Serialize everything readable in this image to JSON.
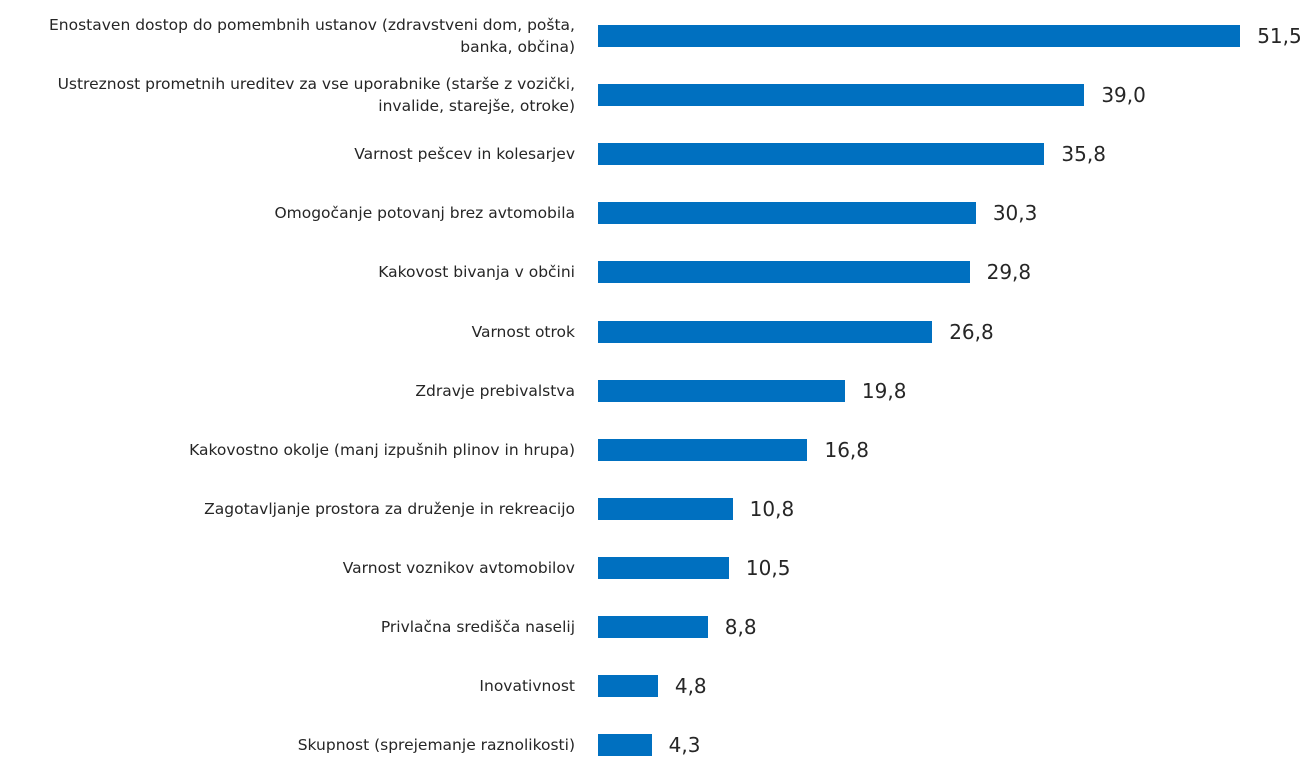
{
  "chart_data": {
    "type": "bar",
    "orientation": "horizontal",
    "color": "#0070c0",
    "categories": [
      "Enostaven dostop do pomembnih ustanov (zdravstveni dom, pošta, banka, občina)",
      "Ustreznost prometnih ureditev za vse uporabnike (starše z vozički, invalide, starejše, otroke)",
      "Varnost pešcev in kolesarjev",
      "Omogočanje potovanj brez avtomobila",
      "Kakovost bivanja v občini",
      "Varnost otrok",
      "Zdravje prebivalstva",
      "Kakovostno okolje (manj izpušnih plinov in hrupa)",
      "Zagotavljanje prostora za druženje in rekreacijo",
      "Varnost voznikov avtomobilov",
      "Privlačna središča naselij",
      "Inovativnost",
      "Skupnost (sprejemanje raznolikosti)"
    ],
    "values": [
      51.5,
      39.0,
      35.8,
      30.3,
      29.8,
      26.8,
      19.8,
      16.8,
      10.8,
      10.5,
      8.8,
      4.8,
      4.3
    ],
    "value_labels": [
      "51,5",
      "39,0",
      "35,8",
      "30,3",
      "29,8",
      "26,8",
      "19,8",
      "16,8",
      "10,8",
      "10,5",
      "8,8",
      "4,8",
      "4,3"
    ]
  }
}
